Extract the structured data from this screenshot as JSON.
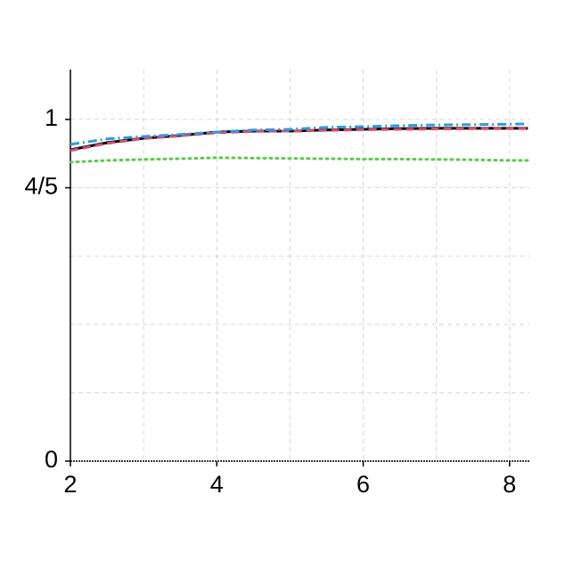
{
  "chart_data": {
    "type": "line",
    "x": [
      2,
      2.5,
      3,
      3.5,
      4,
      4.5,
      5,
      5.5,
      6,
      6.5,
      7,
      7.5,
      8,
      8.25
    ],
    "series": [
      {
        "color": "#000000",
        "dash": "solid",
        "values": [
          0.911,
          0.932,
          0.945,
          0.953,
          0.963,
          0.966,
          0.966,
          0.969,
          0.971,
          0.973,
          0.974,
          0.974,
          0.974,
          0.974
        ]
      },
      {
        "color": "#d6506e",
        "dash": "dashed",
        "values": [
          0.909,
          0.93,
          0.944,
          0.952,
          0.961,
          0.965,
          0.966,
          0.968,
          0.97,
          0.971,
          0.972,
          0.973,
          0.973,
          0.973
        ]
      },
      {
        "color": "#2e9be0",
        "dash": "dashdot",
        "values": [
          0.927,
          0.943,
          0.95,
          0.956,
          0.963,
          0.969,
          0.971,
          0.977,
          0.979,
          0.982,
          0.984,
          0.985,
          0.986,
          0.987
        ]
      },
      {
        "color": "#5dc94f",
        "dash": "dotted",
        "values": [
          0.875,
          0.88,
          0.883,
          0.885,
          0.888,
          0.887,
          0.886,
          0.885,
          0.884,
          0.884,
          0.883,
          0.882,
          0.88,
          0.88
        ]
      }
    ],
    "xlim": [
      2,
      8.27
    ],
    "ylim": [
      0,
      1.146
    ],
    "xticks": [
      2,
      4,
      6,
      8
    ],
    "xminor": [
      3,
      5,
      7
    ],
    "yticks": [
      0,
      {
        "value": 0.8,
        "label": "4/5"
      },
      1
    ],
    "yminor": [
      0.2,
      0.4,
      0.6
    ],
    "grid": true
  }
}
